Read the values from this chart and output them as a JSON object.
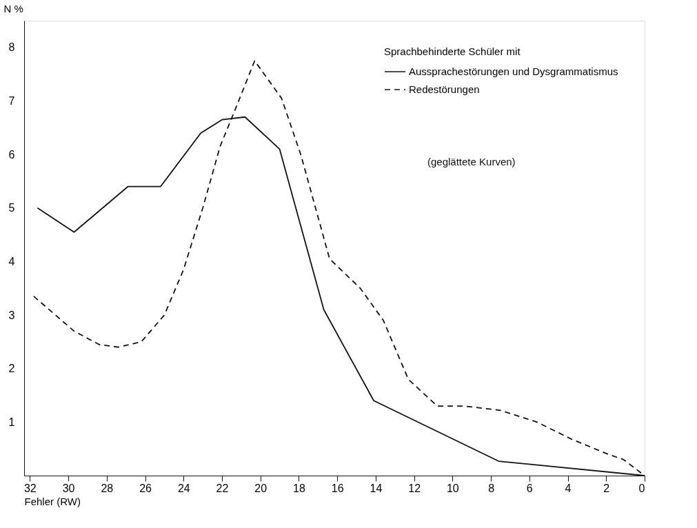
{
  "chart_data": {
    "type": "line",
    "xlabel": "Fehler (RW)",
    "ylabel": "N %",
    "legend_title": "Sprachbehinderte Schüler mit",
    "x": [
      31.6,
      29.7,
      26.9,
      25.2,
      23.1,
      22.0,
      20.8,
      19.0,
      16.7,
      14.1,
      7.6,
      0
    ],
    "series": [
      {
        "name": "Aussprachestörungen und Dysgrammatismus",
        "color": "#111111",
        "line_style": "solid",
        "values": [
          5.0,
          4.55,
          5.4,
          5.4,
          6.4,
          6.65,
          6.7,
          6.1,
          3.1,
          1.4,
          0.27,
          0
        ]
      },
      {
        "name": "Redestörungen",
        "color": "#111111",
        "line_style": "dashed",
        "x": [
          31.8,
          29.7,
          28.4,
          27.4,
          26.2,
          25.0,
          24.0,
          23.0,
          22.1,
          21.3,
          20.3,
          18.9,
          17.9,
          16.4,
          14.8,
          13.6,
          12.3,
          10.8,
          9.4,
          7.5,
          5.6,
          3.8,
          1.9,
          1.1,
          0
        ],
        "values": [
          3.35,
          2.7,
          2.45,
          2.4,
          2.5,
          3.0,
          3.85,
          5.0,
          6.15,
          6.85,
          7.75,
          7.05,
          6.0,
          4.05,
          3.5,
          2.9,
          1.8,
          1.3,
          1.3,
          1.22,
          1.0,
          0.68,
          0.4,
          0.3,
          0
        ]
      }
    ],
    "annotations": [
      "(geglättete Kurven)"
    ],
    "xlim": [
      32.3,
      0
    ],
    "xticks": [
      32,
      30,
      28,
      26,
      24,
      22,
      20,
      18,
      16,
      14,
      12,
      10,
      8,
      6,
      4,
      2,
      0
    ],
    "ylim": [
      0,
      8.5
    ],
    "yticks": [
      1,
      2,
      3,
      4,
      5,
      6,
      7,
      8
    ],
    "grid": false,
    "legend": "top right"
  }
}
